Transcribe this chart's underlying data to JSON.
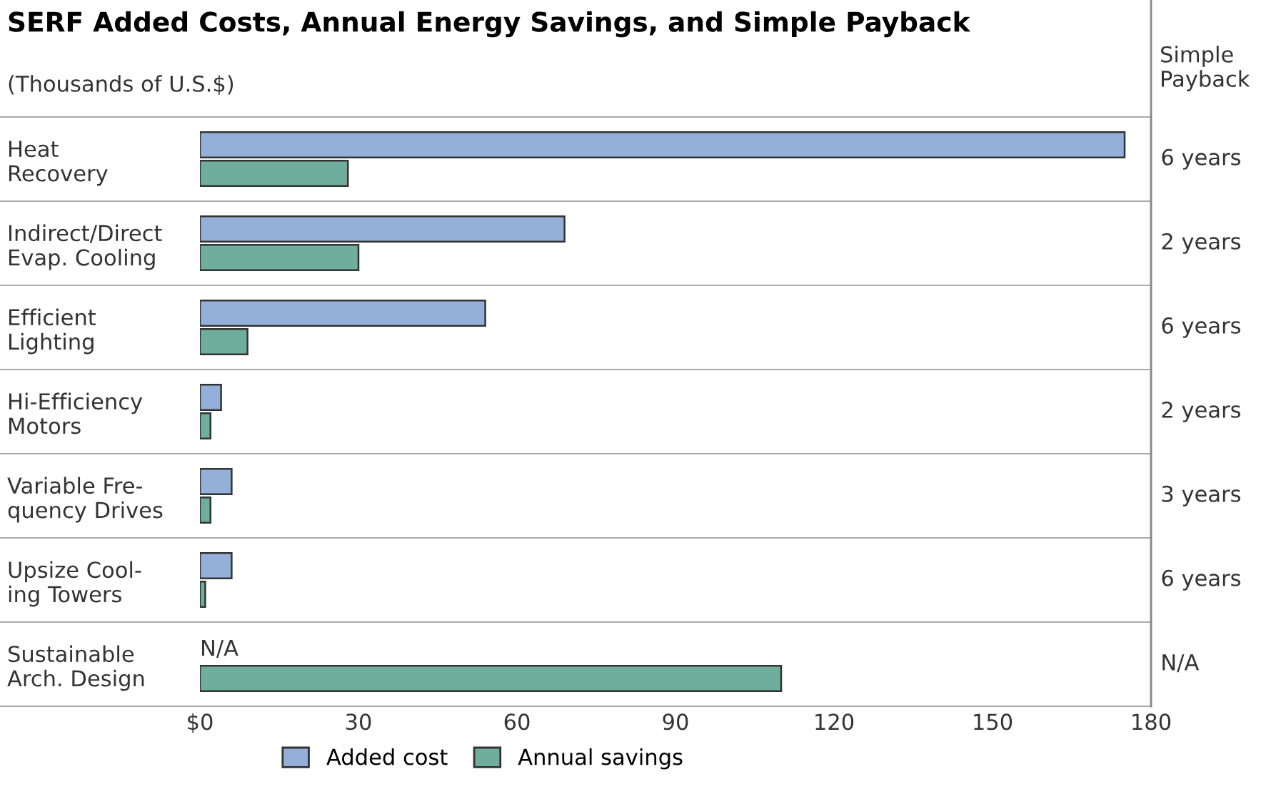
{
  "chart_data": {
    "type": "bar",
    "orientation": "horizontal",
    "title": "SERF Added Costs, Annual Energy Savings, and Simple Payback",
    "subtitle": "(Thousands of U.S.$)",
    "categories": [
      "Heat\nRecovery",
      "Indirect/Direct\nEvap. Cooling",
      "Efficient\nLighting",
      "Hi-Efficiency\nMotors",
      "Variable Fre-\nquency Drives",
      "Upsize Cool-\ning Towers",
      "Sustainable\nArch. Design"
    ],
    "series": [
      {
        "name": "Added cost",
        "color": "#94b0d8",
        "values": [
          175,
          69,
          54,
          4,
          6,
          6,
          null
        ],
        "value_labels": [
          null,
          null,
          null,
          null,
          null,
          null,
          "N/A"
        ]
      },
      {
        "name": "Annual savings",
        "color": "#6fae9c",
        "values": [
          28,
          30,
          9,
          2,
          2,
          1,
          110
        ]
      }
    ],
    "xlim": [
      0,
      180
    ],
    "xticks": [
      {
        "value": 0,
        "label": "$0"
      },
      30,
      60,
      90,
      120,
      150,
      180
    ],
    "legend": "bottom",
    "grid": false,
    "annotations": [
      "Simple\nPayback",
      "6 years",
      "2 years",
      "6 years",
      "2 years",
      "3 years",
      "6 years",
      "N/A"
    ]
  }
}
